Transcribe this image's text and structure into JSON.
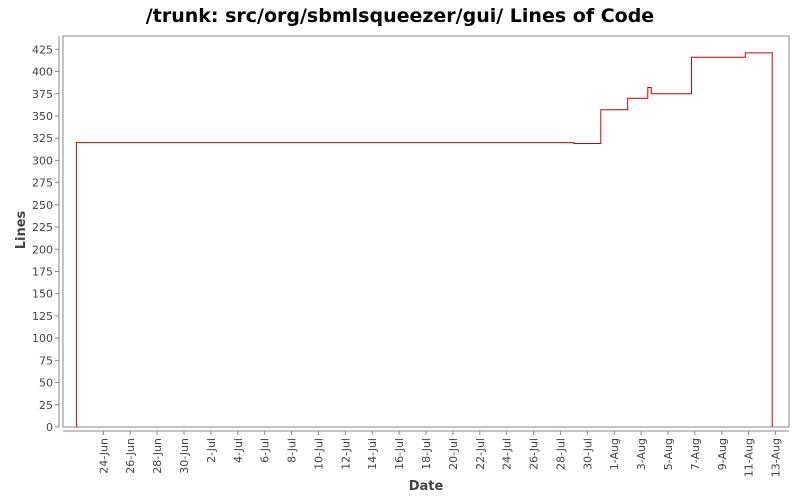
{
  "chart_data": {
    "type": "line",
    "title": "/trunk: src/org/sbmlsqueezer/gui/ Lines of Code",
    "xlabel": "Date",
    "ylabel": "Lines",
    "ylim": [
      0,
      440
    ],
    "yticks": [
      0,
      25,
      50,
      75,
      100,
      125,
      150,
      175,
      200,
      225,
      250,
      275,
      300,
      325,
      350,
      375,
      400,
      425
    ],
    "xlim": [
      "2008-06-21",
      "2008-08-14"
    ],
    "xtick_dates": [
      "2008-06-24",
      "2008-06-26",
      "2008-06-28",
      "2008-06-30",
      "2008-07-02",
      "2008-07-04",
      "2008-07-06",
      "2008-07-08",
      "2008-07-10",
      "2008-07-12",
      "2008-07-14",
      "2008-07-16",
      "2008-07-18",
      "2008-07-20",
      "2008-07-22",
      "2008-07-24",
      "2008-07-26",
      "2008-07-28",
      "2008-07-30",
      "2008-08-01",
      "2008-08-03",
      "2008-08-05",
      "2008-08-07",
      "2008-08-09",
      "2008-08-11",
      "2008-08-13"
    ],
    "xtick_labels": [
      "24-Jun",
      "26-Jun",
      "28-Jun",
      "30-Jun",
      "2-Jul",
      "4-Jul",
      "6-Jul",
      "8-Jul",
      "10-Jul",
      "12-Jul",
      "14-Jul",
      "16-Jul",
      "18-Jul",
      "20-Jul",
      "22-Jul",
      "24-Jul",
      "26-Jul",
      "28-Jul",
      "30-Jul",
      "1-Aug",
      "3-Aug",
      "5-Aug",
      "7-Aug",
      "9-Aug",
      "11-Aug",
      "13-Aug"
    ],
    "grid": false,
    "line_color": "#cc0000",
    "series": [
      {
        "step": "post",
        "points": [
          {
            "x": "2008-06-22",
            "y": 0
          },
          {
            "x": "2008-06-22",
            "y": 320
          },
          {
            "x": "2008-07-29",
            "y": 319
          },
          {
            "x": "2008-07-31",
            "y": 357
          },
          {
            "x": "2008-08-02",
            "y": 370
          },
          {
            "x": "2008-08-03 12:00",
            "y": 382
          },
          {
            "x": "2008-08-03 18:00",
            "y": 375
          },
          {
            "x": "2008-08-06 18:00",
            "y": 416
          },
          {
            "x": "2008-08-10 18:00",
            "y": 421
          },
          {
            "x": "2008-08-12 18:00",
            "y": 0
          }
        ]
      }
    ]
  }
}
